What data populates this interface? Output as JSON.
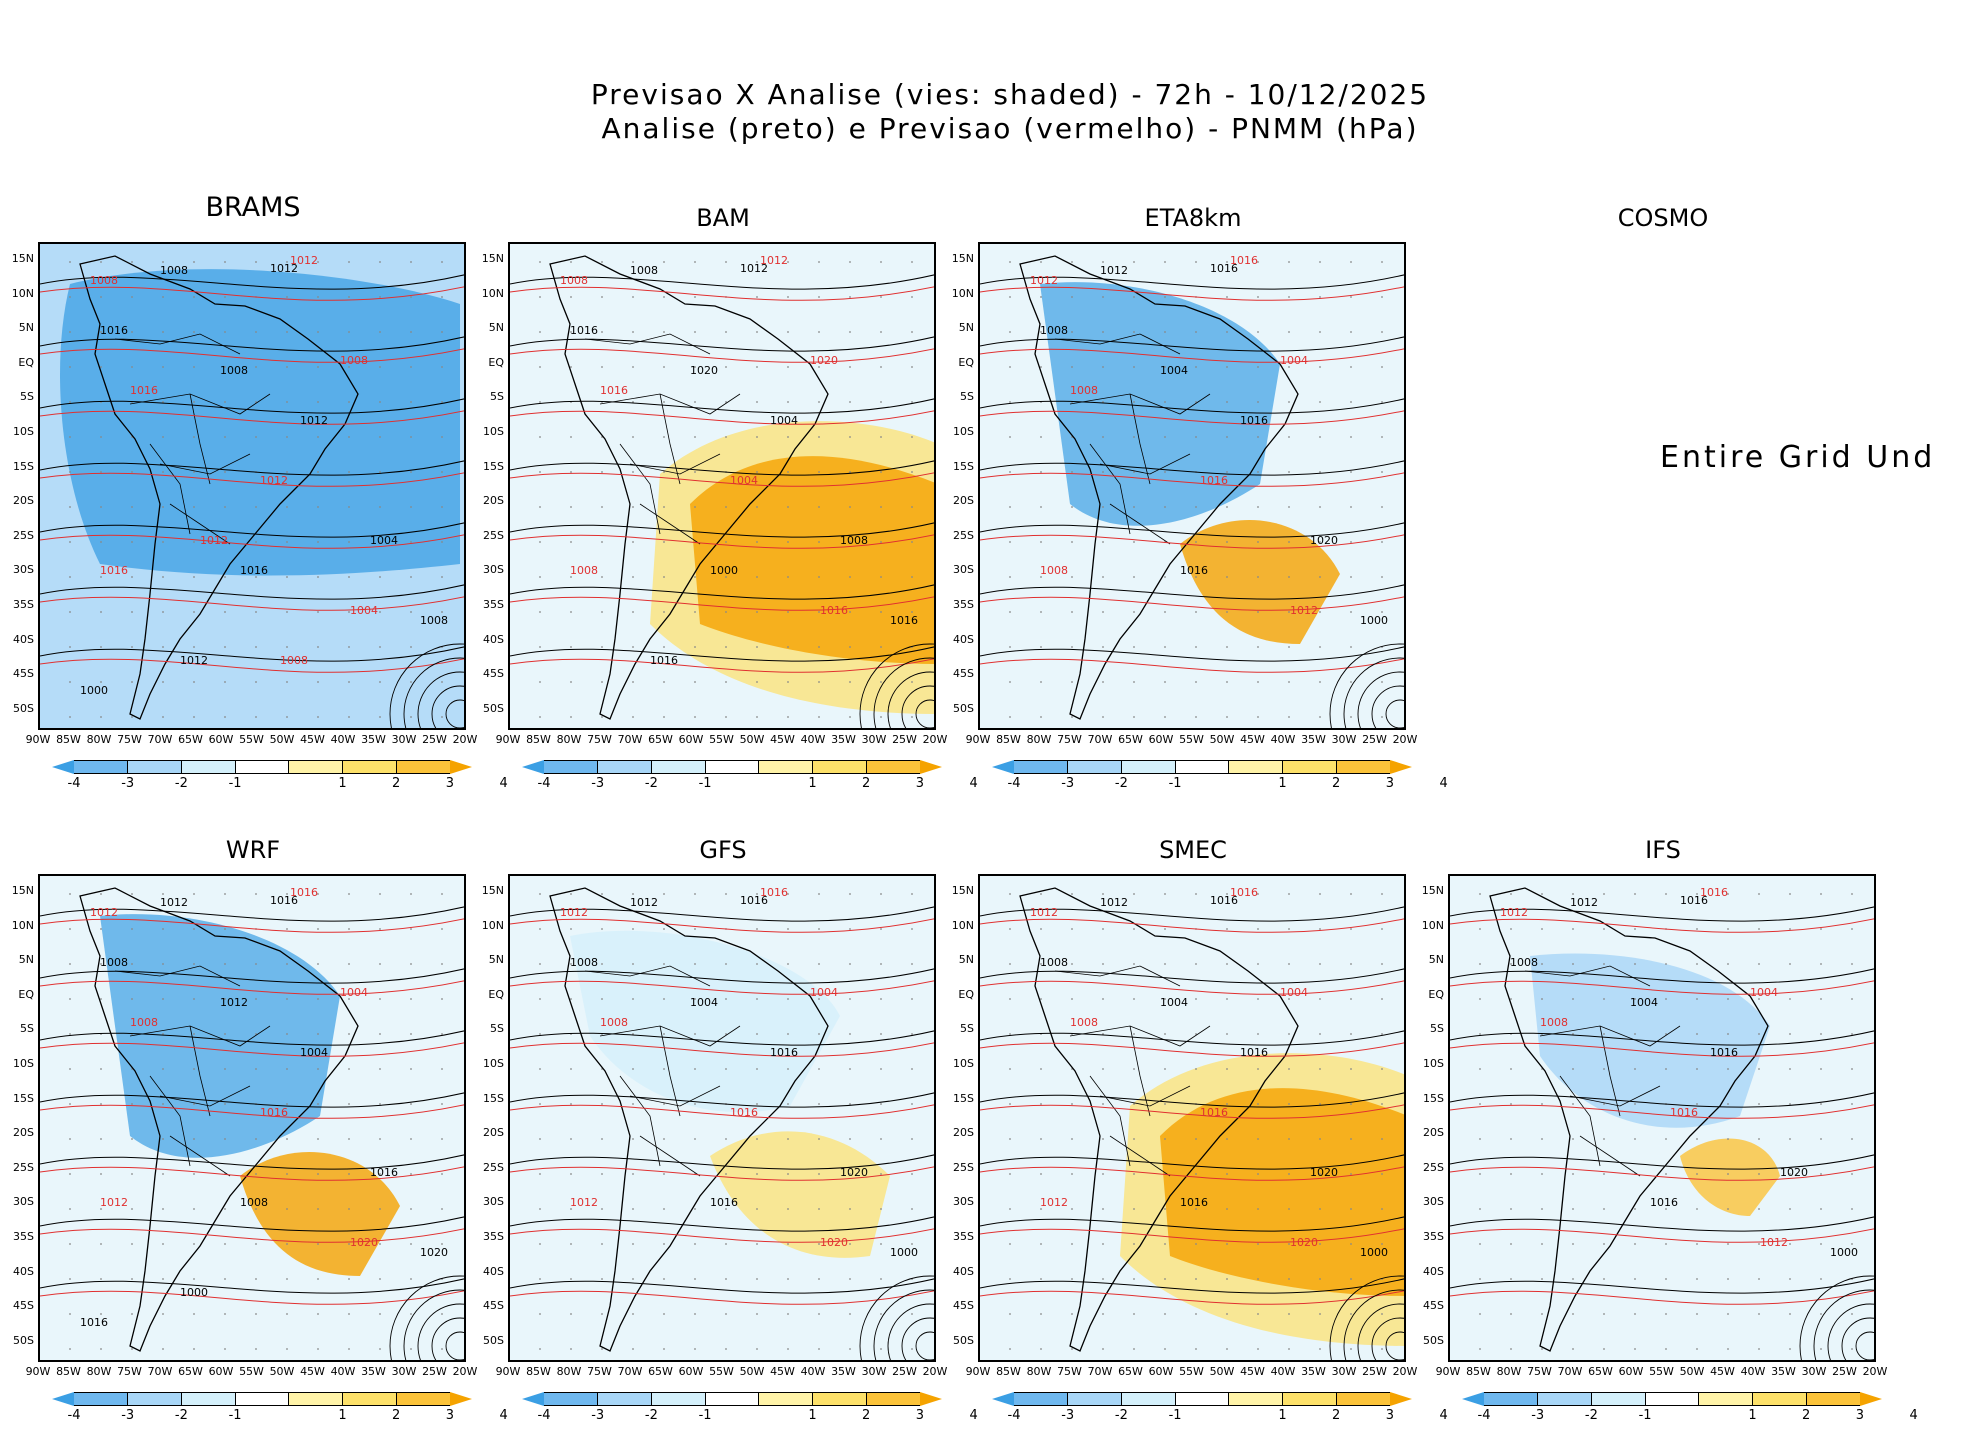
{
  "header": {
    "line1": "Previsao X Analise (vies: shaded) - 72h - 10/12/2025",
    "line2": "Analise (preto) e Previsao (vermelho) - PNMM (hPa)"
  },
  "axes": {
    "lat_labels": [
      "15N",
      "10N",
      "5N",
      "EQ",
      "5S",
      "10S",
      "15S",
      "20S",
      "25S",
      "30S",
      "35S",
      "40S",
      "45S",
      "50S"
    ],
    "lon_labels": [
      "90W",
      "85W",
      "80W",
      "75W",
      "70W",
      "65W",
      "60W",
      "55W",
      "50W",
      "45W",
      "40W",
      "35W",
      "30W",
      "25W",
      "20W"
    ]
  },
  "colorbar": {
    "ticks": [
      "-4",
      "-3",
      "-2",
      "-1",
      "1",
      "2",
      "3",
      "4"
    ],
    "colors": [
      "#3b9fe4",
      "#6fb8ef",
      "#a8d6f7",
      "#d4f0fb",
      "#ffffff",
      "#fff3a8",
      "#fde16a",
      "#fbc33a",
      "#f5a300"
    ]
  },
  "colors": {
    "analysis_contour": "#000000",
    "forecast_contour": "#e03030",
    "land": "#cfe7f2"
  },
  "panels": [
    {
      "name": "BRAMS",
      "has_map": true,
      "bias": "cold",
      "black_labels": [
        "1008",
        "1012",
        "1016",
        "1008",
        "1012",
        "1004",
        "1008",
        "1016",
        "1012",
        "1000"
      ],
      "red_labels": [
        "1008",
        "1012",
        "1016",
        "1008",
        "1012",
        "1004",
        "1016",
        "1012",
        "1008"
      ]
    },
    {
      "name": "BAM",
      "has_map": true,
      "bias": "warm",
      "black_labels": [
        "1008",
        "1012",
        "1016",
        "1020",
        "1004",
        "1008",
        "1016",
        "1000",
        "1016"
      ],
      "red_labels": [
        "1008",
        "1012",
        "1016",
        "1020",
        "1004",
        "1016",
        "1008"
      ]
    },
    {
      "name": "ETA8km",
      "has_map": true,
      "bias": "mixed",
      "black_labels": [
        "1012",
        "1016",
        "1008",
        "1004",
        "1016",
        "1020",
        "1000",
        "1016"
      ],
      "red_labels": [
        "1012",
        "1016",
        "1008",
        "1004",
        "1016",
        "1012",
        "1008"
      ]
    },
    {
      "name": "COSMO",
      "has_map": false,
      "message": "Entire Grid Und"
    },
    {
      "name": "WRF",
      "has_map": true,
      "bias": "mixed",
      "black_labels": [
        "1012",
        "1016",
        "1008",
        "1012",
        "1004",
        "1016",
        "1020",
        "1008",
        "1000",
        "1016"
      ],
      "red_labels": [
        "1012",
        "1016",
        "1008",
        "1004",
        "1016",
        "1020",
        "1012"
      ]
    },
    {
      "name": "GFS",
      "has_map": true,
      "bias": "warm-light",
      "black_labels": [
        "1012",
        "1016",
        "1008",
        "1004",
        "1016",
        "1020",
        "1000",
        "1016"
      ],
      "red_labels": [
        "1012",
        "1016",
        "1008",
        "1004",
        "1016",
        "1020",
        "1012"
      ]
    },
    {
      "name": "SMEC",
      "has_map": true,
      "bias": "warm",
      "black_labels": [
        "1012",
        "1016",
        "1008",
        "1004",
        "1016",
        "1020",
        "1000",
        "1016"
      ],
      "red_labels": [
        "1012",
        "1016",
        "1008",
        "1004",
        "1016",
        "1020",
        "1012"
      ]
    },
    {
      "name": "IFS",
      "has_map": true,
      "bias": "mixed-light",
      "black_labels": [
        "1012",
        "1016",
        "1008",
        "1004",
        "1016",
        "1020",
        "1000",
        "1016"
      ],
      "red_labels": [
        "1012",
        "1016",
        "1008",
        "1004",
        "1016",
        "1012"
      ]
    }
  ]
}
